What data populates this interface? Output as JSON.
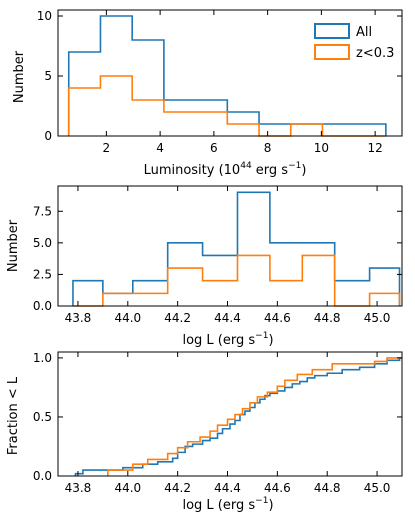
{
  "colors": {
    "all": "#1f77b4",
    "z": "#ff7f0e"
  },
  "chart_data": [
    {
      "type": "histogram",
      "xlabel": "Luminosity (10",
      "xlabel_sup1": "44",
      "xlabel_mid": " erg s",
      "xlabel_sup2": "−1",
      "xlabel_end": ")",
      "ylabel": "Number",
      "xlim": [
        0.2,
        13.0
      ],
      "ylim": [
        0,
        10.5
      ],
      "xticks": [
        2,
        4,
        6,
        8,
        10,
        12
      ],
      "xtick_labels": [
        "2",
        "4",
        "6",
        "8",
        "10",
        "12"
      ],
      "yticks": [
        0,
        5,
        10
      ],
      "ytick_labels": [
        "0",
        "5",
        "10"
      ],
      "bin_edges": [
        0.6,
        1.78,
        2.96,
        4.14,
        5.32,
        6.5,
        7.68,
        8.86,
        10.04,
        11.22,
        12.4
      ],
      "series": [
        {
          "name": "All",
          "values": [
            7,
            10,
            8,
            3,
            3,
            2,
            1,
            1,
            1,
            1
          ]
        },
        {
          "name": "z<0.3",
          "values": [
            4,
            5,
            3,
            2,
            2,
            1,
            0,
            1,
            0,
            0
          ]
        }
      ],
      "legend_position": "top-right"
    },
    {
      "type": "histogram",
      "xlabel": "log L (erg s",
      "xlabel_sup": "−1",
      "xlabel_end": ")",
      "ylabel": "Number",
      "xlim": [
        43.72,
        45.1
      ],
      "ylim": [
        0,
        9.5
      ],
      "xticks": [
        43.8,
        44.0,
        44.2,
        44.4,
        44.6,
        44.8,
        45.0
      ],
      "xtick_labels": [
        "43.8",
        "44.0",
        "44.2",
        "44.4",
        "44.6",
        "44.8",
        "45.0"
      ],
      "yticks": [
        0,
        2.5,
        5,
        7.5
      ],
      "ytick_labels": [
        "0.0",
        "2.5",
        "5.0",
        "7.5"
      ],
      "bin_edges": [
        43.78,
        43.9,
        44.02,
        44.16,
        44.3,
        44.44,
        44.57,
        44.7,
        44.83,
        44.97,
        45.09
      ],
      "series": [
        {
          "name": "All",
          "values": [
            2,
            1,
            2,
            5,
            4,
            9,
            5,
            5,
            2,
            3
          ]
        },
        {
          "name": "z<0.3",
          "values": [
            0,
            1,
            1,
            3,
            2,
            4,
            2,
            4,
            0,
            1
          ]
        }
      ]
    },
    {
      "type": "line",
      "step": true,
      "xlabel": "log L (erg s",
      "xlabel_sup": "−1",
      "xlabel_end": ")",
      "ylabel": "Fraction < L",
      "xlim": [
        43.72,
        45.1
      ],
      "ylim": [
        0,
        1.05
      ],
      "xticks": [
        43.8,
        44.0,
        44.2,
        44.4,
        44.6,
        44.8,
        45.0
      ],
      "xtick_labels": [
        "43.8",
        "44.0",
        "44.2",
        "44.4",
        "44.6",
        "44.8",
        "45.0"
      ],
      "yticks": [
        0,
        0.5,
        1.0
      ],
      "ytick_labels": [
        "0.0",
        "0.5",
        "1.0"
      ],
      "series": [
        {
          "name": "All",
          "x": [
            43.79,
            43.82,
            43.98,
            44.06,
            44.12,
            44.18,
            44.2,
            44.23,
            44.26,
            44.3,
            44.33,
            44.36,
            44.38,
            44.41,
            44.43,
            44.45,
            44.47,
            44.49,
            44.51,
            44.53,
            44.55,
            44.57,
            44.6,
            44.63,
            44.66,
            44.69,
            44.72,
            44.75,
            44.8,
            44.86,
            44.93,
            44.99,
            45.04,
            45.09
          ],
          "y": [
            0.02,
            0.05,
            0.07,
            0.1,
            0.12,
            0.15,
            0.2,
            0.25,
            0.27,
            0.3,
            0.32,
            0.36,
            0.4,
            0.44,
            0.47,
            0.52,
            0.55,
            0.58,
            0.62,
            0.65,
            0.68,
            0.7,
            0.72,
            0.75,
            0.78,
            0.8,
            0.83,
            0.85,
            0.87,
            0.9,
            0.92,
            0.95,
            0.98,
            1.0
          ]
        },
        {
          "name": "z<0.3",
          "x": [
            43.92,
            44.02,
            44.08,
            44.16,
            44.2,
            44.24,
            44.29,
            44.33,
            44.36,
            44.4,
            44.43,
            44.46,
            44.49,
            44.52,
            44.56,
            44.6,
            44.63,
            44.68,
            44.74,
            44.82,
            44.99,
            45.04,
            45.09
          ],
          "y": [
            0.05,
            0.1,
            0.14,
            0.19,
            0.24,
            0.29,
            0.33,
            0.38,
            0.43,
            0.48,
            0.52,
            0.57,
            0.62,
            0.67,
            0.71,
            0.76,
            0.81,
            0.86,
            0.9,
            0.95,
            0.97,
            1.0,
            1.0
          ]
        }
      ]
    }
  ]
}
